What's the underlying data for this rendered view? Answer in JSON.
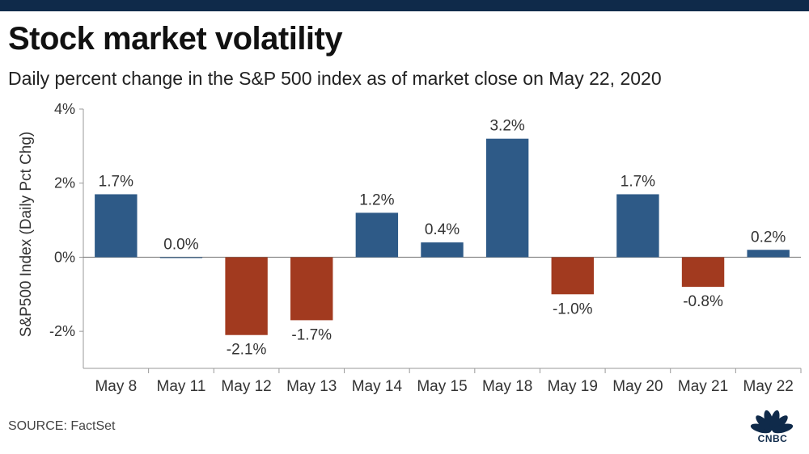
{
  "header": {
    "title": "Stock market volatility",
    "subtitle": "Daily percent change in the S&P 500 index as of market close on May 22, 2020"
  },
  "footer": {
    "source": "SOURCE: FactSet",
    "logo_text": "CNBC"
  },
  "colors": {
    "positive": "#2e5a87",
    "negative": "#a23a1f",
    "band": "#0f2a4a"
  },
  "chart_data": {
    "type": "bar",
    "title": "Stock market volatility",
    "subtitle": "Daily percent change in the S&P 500 index as of market close on May 22, 2020",
    "xlabel": "",
    "ylabel": "S&P500 Index (Daily Pct Chg)",
    "ylim": [
      -3,
      4
    ],
    "yticks": [
      4,
      2,
      0,
      -2
    ],
    "ytick_labels": [
      "4%",
      "2%",
      "0%",
      "-2%"
    ],
    "categories": [
      "May 8",
      "May 11",
      "May 12",
      "May 13",
      "May 14",
      "May 15",
      "May 18",
      "May 19",
      "May 20",
      "May 21",
      "May 22"
    ],
    "values": [
      1.7,
      0.0,
      -2.1,
      -1.7,
      1.2,
      0.4,
      3.2,
      -1.0,
      1.7,
      -0.8,
      0.2
    ],
    "value_labels": [
      "1.7%",
      "0.0%",
      "-2.1%",
      "-1.7%",
      "1.2%",
      "0.4%",
      "3.2%",
      "-1.0%",
      "1.7%",
      "-0.8%",
      "0.2%"
    ]
  }
}
